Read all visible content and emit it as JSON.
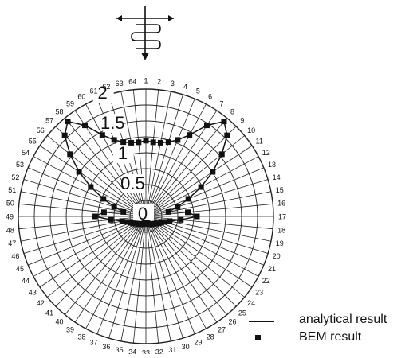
{
  "chart_data": {
    "type": "polar",
    "radial_ticks": [
      "0",
      "0.5",
      "1",
      "1.5",
      "2"
    ],
    "radial_range": [
      0,
      2
    ],
    "angular_labels": [
      "1",
      "2",
      "3",
      "4",
      "5",
      "6",
      "7",
      "8",
      "9",
      "10",
      "11",
      "12",
      "13",
      "14",
      "15",
      "16",
      "17",
      "18",
      "19",
      "20",
      "21",
      "22",
      "23",
      "24",
      "25",
      "26",
      "27",
      "28",
      "29",
      "30",
      "31",
      "32",
      "33",
      "34",
      "35",
      "36",
      "37",
      "38",
      "39",
      "40",
      "41",
      "42",
      "43",
      "44",
      "45",
      "46",
      "47",
      "48",
      "49",
      "50",
      "51",
      "52",
      "53",
      "54",
      "55",
      "56",
      "57",
      "58",
      "59",
      "60",
      "61",
      "62",
      "63",
      "64"
    ],
    "grid": true,
    "legend_placement": "bottom-right",
    "series": [
      {
        "name": "analytical result",
        "style": "line",
        "values": [
          1.19,
          1.17,
          1.18,
          1.22,
          1.3,
          1.45,
          1.72,
          1.93,
          1.8,
          1.54,
          1.26,
          0.98,
          0.72,
          0.52,
          0.36,
          0.66,
          0.8,
          0.55,
          0.38,
          0.3,
          0.26,
          0.23,
          0.2,
          0.18,
          0.17,
          0.16,
          0.15,
          0.14,
          0.13,
          0.12,
          0.11,
          0.1,
          0.1,
          0.1,
          0.11,
          0.12,
          0.13,
          0.14,
          0.15,
          0.16,
          0.17,
          0.18,
          0.2,
          0.23,
          0.26,
          0.3,
          0.38,
          0.55,
          0.8,
          0.66,
          0.36,
          0.52,
          0.72,
          0.98,
          1.26,
          1.54,
          1.8,
          1.93,
          1.72,
          1.45,
          1.3,
          1.22,
          1.18,
          1.17
        ]
      },
      {
        "name": "BEM result",
        "style": "marker",
        "values": [
          1.19,
          1.17,
          1.18,
          1.22,
          1.3,
          1.45,
          1.72,
          1.93,
          1.8,
          1.54,
          1.26,
          0.98,
          0.72,
          0.52,
          0.36,
          0.66,
          0.8,
          0.55,
          0.38,
          0.3,
          0.26,
          0.23,
          0.2,
          0.18,
          0.17,
          0.16,
          0.15,
          0.14,
          0.13,
          0.12,
          0.11,
          0.1,
          0.1,
          0.1,
          0.11,
          0.12,
          0.13,
          0.14,
          0.15,
          0.16,
          0.17,
          0.18,
          0.2,
          0.23,
          0.26,
          0.3,
          0.38,
          0.55,
          0.8,
          0.66,
          0.36,
          0.52,
          0.72,
          0.98,
          1.26,
          1.54,
          1.8,
          1.93,
          1.72,
          1.45,
          1.3,
          1.22,
          1.18,
          1.17
        ]
      }
    ]
  },
  "legend": {
    "items": [
      {
        "label": "analytical result",
        "symbol": "line"
      },
      {
        "label": "BEM result",
        "symbol": "square"
      }
    ]
  },
  "icon": {
    "name": "wave-propagation-icon",
    "color": "#111111"
  }
}
